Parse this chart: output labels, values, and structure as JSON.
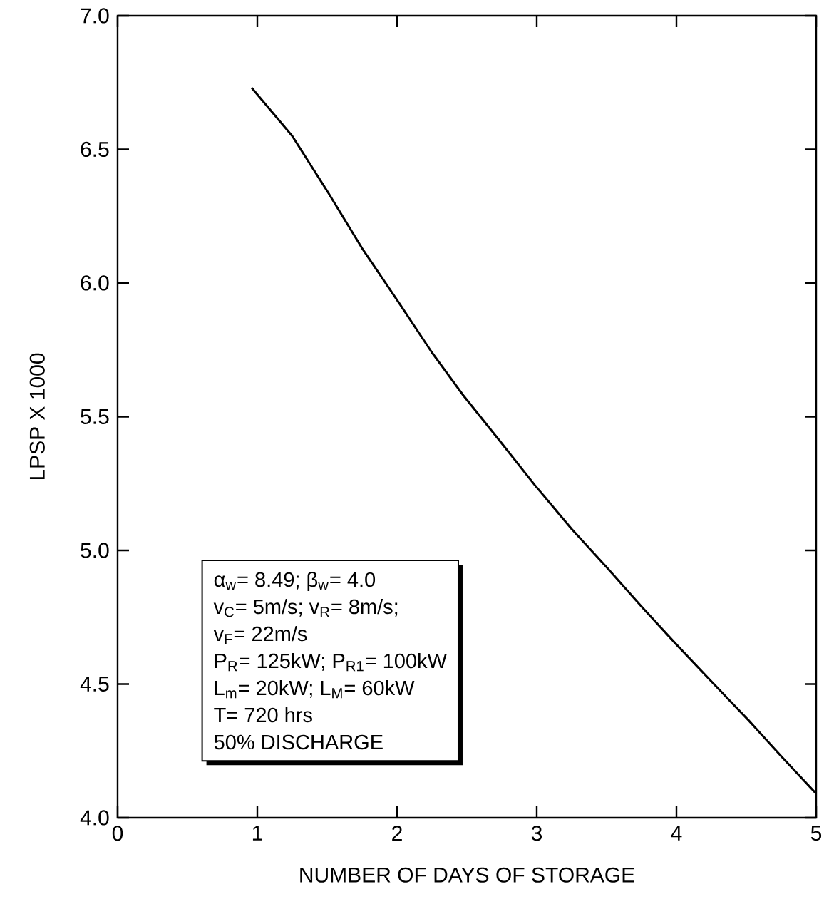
{
  "chart_data": {
    "type": "line",
    "xlabel": "NUMBER OF DAYS OF STORAGE",
    "ylabel": "LPSP X 1000",
    "x": [
      0.96,
      1.25,
      1.505,
      1.75,
      2.015,
      2.25,
      2.474,
      2.75,
      2.985,
      3.25,
      3.495,
      3.75,
      4.005,
      4.25,
      4.515,
      4.75,
      5.0
    ],
    "values": [
      6.73,
      6.55,
      6.34,
      6.13,
      5.925,
      5.74,
      5.58,
      5.4,
      5.245,
      5.08,
      4.94,
      4.79,
      4.645,
      4.51,
      4.365,
      4.23,
      4.09
    ],
    "color": "#000000",
    "marker": "none",
    "line_style": "solid",
    "grid": false,
    "xlim": [
      0,
      5
    ],
    "ylim": [
      4.0,
      7.0
    ],
    "xticks": [
      0,
      1,
      2,
      3,
      4,
      5
    ],
    "yticks": [
      {
        "value": 4.0,
        "label": "4.0"
      },
      {
        "value": 4.5,
        "label": "4.5"
      },
      {
        "value": 5.0,
        "label": "5.0"
      },
      {
        "value": 5.5,
        "label": "5.5"
      },
      {
        "value": 6.0,
        "label": "6.0"
      },
      {
        "value": 6.5,
        "label": "6.5"
      },
      {
        "value": 7.0,
        "label": "7.0"
      }
    ],
    "annotations": [
      "α$_{w}$= 8.49; β$_{w}$= 4.0",
      "v$_{C}$= 5m/s; v$_{R}$= 8m/s;",
      "v$_{F}$= 22m/s",
      "P$_{R}$= 125kW; P$_{R1}$= 100kW",
      "L$_{m}$= 20kW; L$_{M}$= 60kW",
      "T= 720 hrs",
      "50% DISCHARGE"
    ]
  }
}
